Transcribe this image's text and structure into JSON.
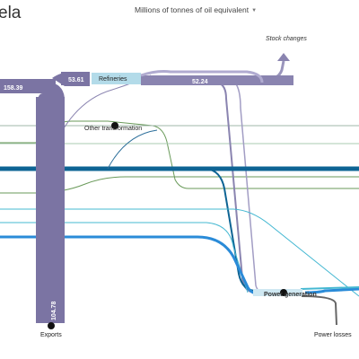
{
  "header": {
    "title": "ela",
    "units_label": "Millions of tonnes of oil equivalent",
    "units_caret": "▼"
  },
  "nodes": {
    "stock_changes": "Stock  changes",
    "refineries": "Refineries",
    "other_transformation": "Other transformation",
    "power_generation": "Power generation",
    "exports": "Exports",
    "power_losses": "Power losses"
  },
  "flow_values": {
    "supply": "158.39",
    "to_refineries": "53.61",
    "from_refineries": "52.24",
    "exports": "104.78"
  },
  "colors": {
    "oil": "#7b74a3",
    "refinery_box": "#b3dbe9",
    "gas": "#0e6494",
    "coal": "#6a9a5a",
    "electricity": "#2a8bd8",
    "renewables": "#45b8d2",
    "losses": "#666666"
  }
}
